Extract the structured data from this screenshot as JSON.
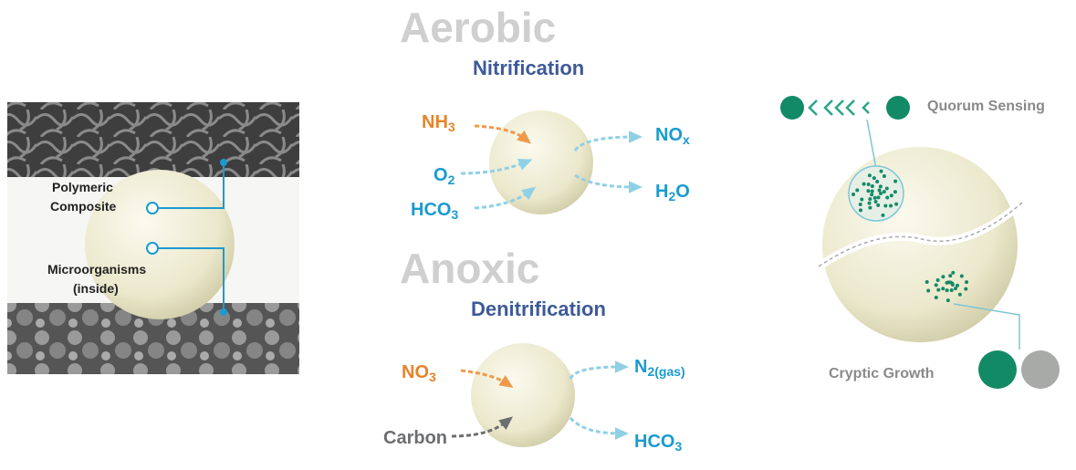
{
  "left": {
    "polymeric": [
      "Polymeric",
      "Composite"
    ],
    "micro": [
      "Microorganisms",
      "(inside)"
    ]
  },
  "aerobic": {
    "title": "Aerobic",
    "process": "Nitrification",
    "inputs": [
      [
        "NH",
        "3"
      ],
      [
        "O",
        "2"
      ],
      [
        "HCO",
        "3"
      ]
    ],
    "outputs": [
      [
        "NO",
        "x"
      ],
      [
        "H",
        "2",
        "O"
      ]
    ]
  },
  "anoxic": {
    "title": "Anoxic",
    "process": "Denitrification",
    "inputs": [
      [
        "NO",
        "3"
      ],
      [
        "Carbon"
      ]
    ],
    "outputs": [
      [
        "N",
        "2(gas)"
      ],
      [
        "HCO",
        "3"
      ]
    ]
  },
  "right": {
    "quorum": "Quorum Sensing",
    "cryptic": "Cryptic Growth"
  }
}
